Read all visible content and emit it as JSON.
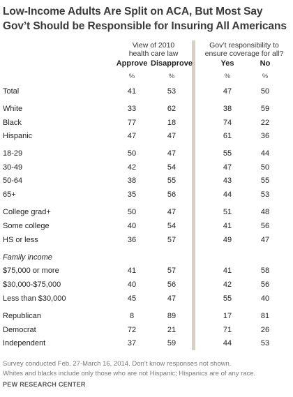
{
  "title_lines": [
    "Low-Income Adults Are Split on ACA, But Most Say",
    "Gov’t Should be Responsible for Insuring All Americans"
  ],
  "chart_data": {
    "type": "table",
    "groups": [
      {
        "label_lines": [
          "View of 2010",
          "health care law"
        ]
      },
      {
        "label_lines": [
          "Gov’t responsibility to",
          "ensure coverage for all?"
        ]
      }
    ],
    "columns": [
      "Approve",
      "Disapprove",
      "Yes",
      "No"
    ],
    "unit_labels": [
      "%",
      "%",
      "%",
      "%"
    ],
    "rows": [
      {
        "label": "Total",
        "values": [
          41,
          53,
          47,
          50
        ]
      },
      {
        "label": "White",
        "values": [
          33,
          62,
          38,
          59
        ]
      },
      {
        "label": "Black",
        "values": [
          77,
          18,
          74,
          22
        ]
      },
      {
        "label": "Hispanic",
        "values": [
          47,
          47,
          61,
          36
        ]
      },
      {
        "label": "18-29",
        "values": [
          50,
          47,
          55,
          44
        ]
      },
      {
        "label": "30-49",
        "values": [
          42,
          54,
          47,
          50
        ]
      },
      {
        "label": "50-64",
        "values": [
          38,
          55,
          43,
          55
        ]
      },
      {
        "label": "65+",
        "values": [
          35,
          56,
          44,
          53
        ]
      },
      {
        "label": "College grad+",
        "values": [
          50,
          47,
          51,
          48
        ]
      },
      {
        "label": "Some college",
        "values": [
          40,
          54,
          41,
          56
        ]
      },
      {
        "label": "HS or less",
        "values": [
          36,
          57,
          49,
          47
        ]
      },
      {
        "label": "Family income",
        "values": [],
        "subheader": true
      },
      {
        "label": "$75,000 or more",
        "values": [
          41,
          57,
          41,
          58
        ]
      },
      {
        "label": "$30,000-$75,000",
        "values": [
          40,
          56,
          42,
          56
        ]
      },
      {
        "label": "Less than $30,000",
        "values": [
          45,
          47,
          55,
          40
        ]
      },
      {
        "label": "Republican",
        "values": [
          8,
          89,
          17,
          81
        ]
      },
      {
        "label": "Democrat",
        "values": [
          72,
          21,
          71,
          26
        ]
      },
      {
        "label": "Independent",
        "values": [
          37,
          59,
          44,
          53
        ]
      }
    ]
  },
  "footnotes": [
    "Survey conducted Feb. 27-March 16, 2014. Don’t know responses not shown.",
    "Whites and blacks include only those who are not Hispanic; Hispanics are of any race."
  ],
  "source": "PEW RESEARCH CENTER"
}
